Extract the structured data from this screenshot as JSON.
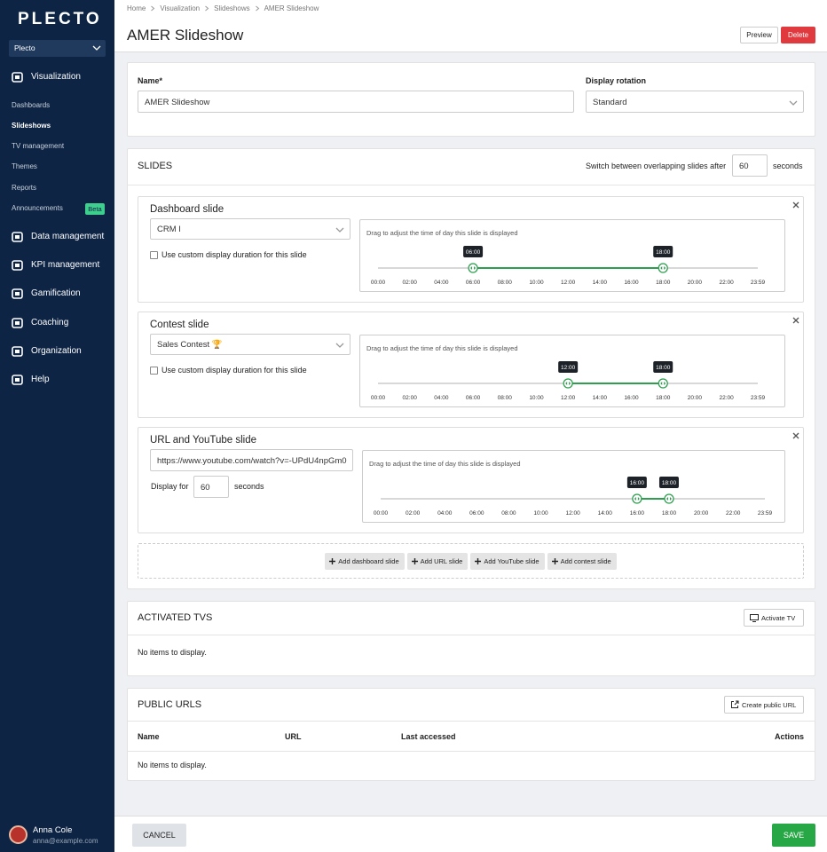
{
  "sidebar": {
    "logo": "PLECTO",
    "organization": "Plecto",
    "sections": [
      "Visualization",
      "Data management",
      "KPI management",
      "Gamification",
      "Coaching",
      "Organization",
      "Help"
    ],
    "visualization_items": [
      "Dashboards",
      "Slideshows",
      "TV management",
      "Themes",
      "Reports",
      "Announcements"
    ],
    "badge": "Beta",
    "user": {
      "name": "Anna Cole",
      "email": "anna@example.com"
    }
  },
  "breadcrumb": [
    "Home",
    "Visualization",
    "Slideshows",
    "AMER Slideshow"
  ],
  "header": {
    "title": "AMER Slideshow",
    "buttons": [
      "Preview",
      "Delete"
    ]
  },
  "settings": {
    "name_label": "Name*",
    "name_value": "AMER Slideshow",
    "rotation_label": "Display rotation",
    "rotation_value": "Standard"
  },
  "slides_section": {
    "title": "SLIDES",
    "switch_label": "Switch between overlapping slides after",
    "switch_value": "60",
    "switch_unit": "seconds",
    "timeline_hint": "Drag to adjust the time of day this slide is displayed",
    "timeline_ticks": [
      "00:00",
      "02:00",
      "04:00",
      "06:00",
      "08:00",
      "10:00",
      "12:00",
      "14:00",
      "16:00",
      "18:00",
      "20:00",
      "22:00",
      "23:59"
    ],
    "slides": [
      {
        "title": "Dashboard slide",
        "select": "CRM I",
        "checkbox": "Use custom display duration for this slide",
        "start": "06:00",
        "end": "18:00"
      },
      {
        "title": "Contest slide",
        "select": "Sales Contest 🏆",
        "checkbox": "Use custom display duration for this slide",
        "start": "12:00",
        "end": "18:00"
      },
      {
        "title": "URL and YouTube slide",
        "url": "https://www.youtube.com/watch?v=-UPdU4npGm0",
        "display_label": "Display for",
        "display_value": "60",
        "display_unit": "seconds",
        "start": "16:00",
        "end": "18:00"
      }
    ],
    "add_buttons": [
      "Add dashboard slide",
      "Add URL slide",
      "Add YouTube slide",
      "Add contest slide"
    ]
  },
  "activated_tvs": {
    "title": "ACTIVATED TVS",
    "button": "Activate TV",
    "empty": "No items to display."
  },
  "public_urls": {
    "title": "PUBLIC URLS",
    "button": "Create public URL",
    "columns": [
      "Name",
      "URL",
      "Last accessed",
      "Actions"
    ],
    "empty": "No items to display."
  },
  "footer": {
    "cancel": "CANCEL",
    "save": "SAVE"
  }
}
